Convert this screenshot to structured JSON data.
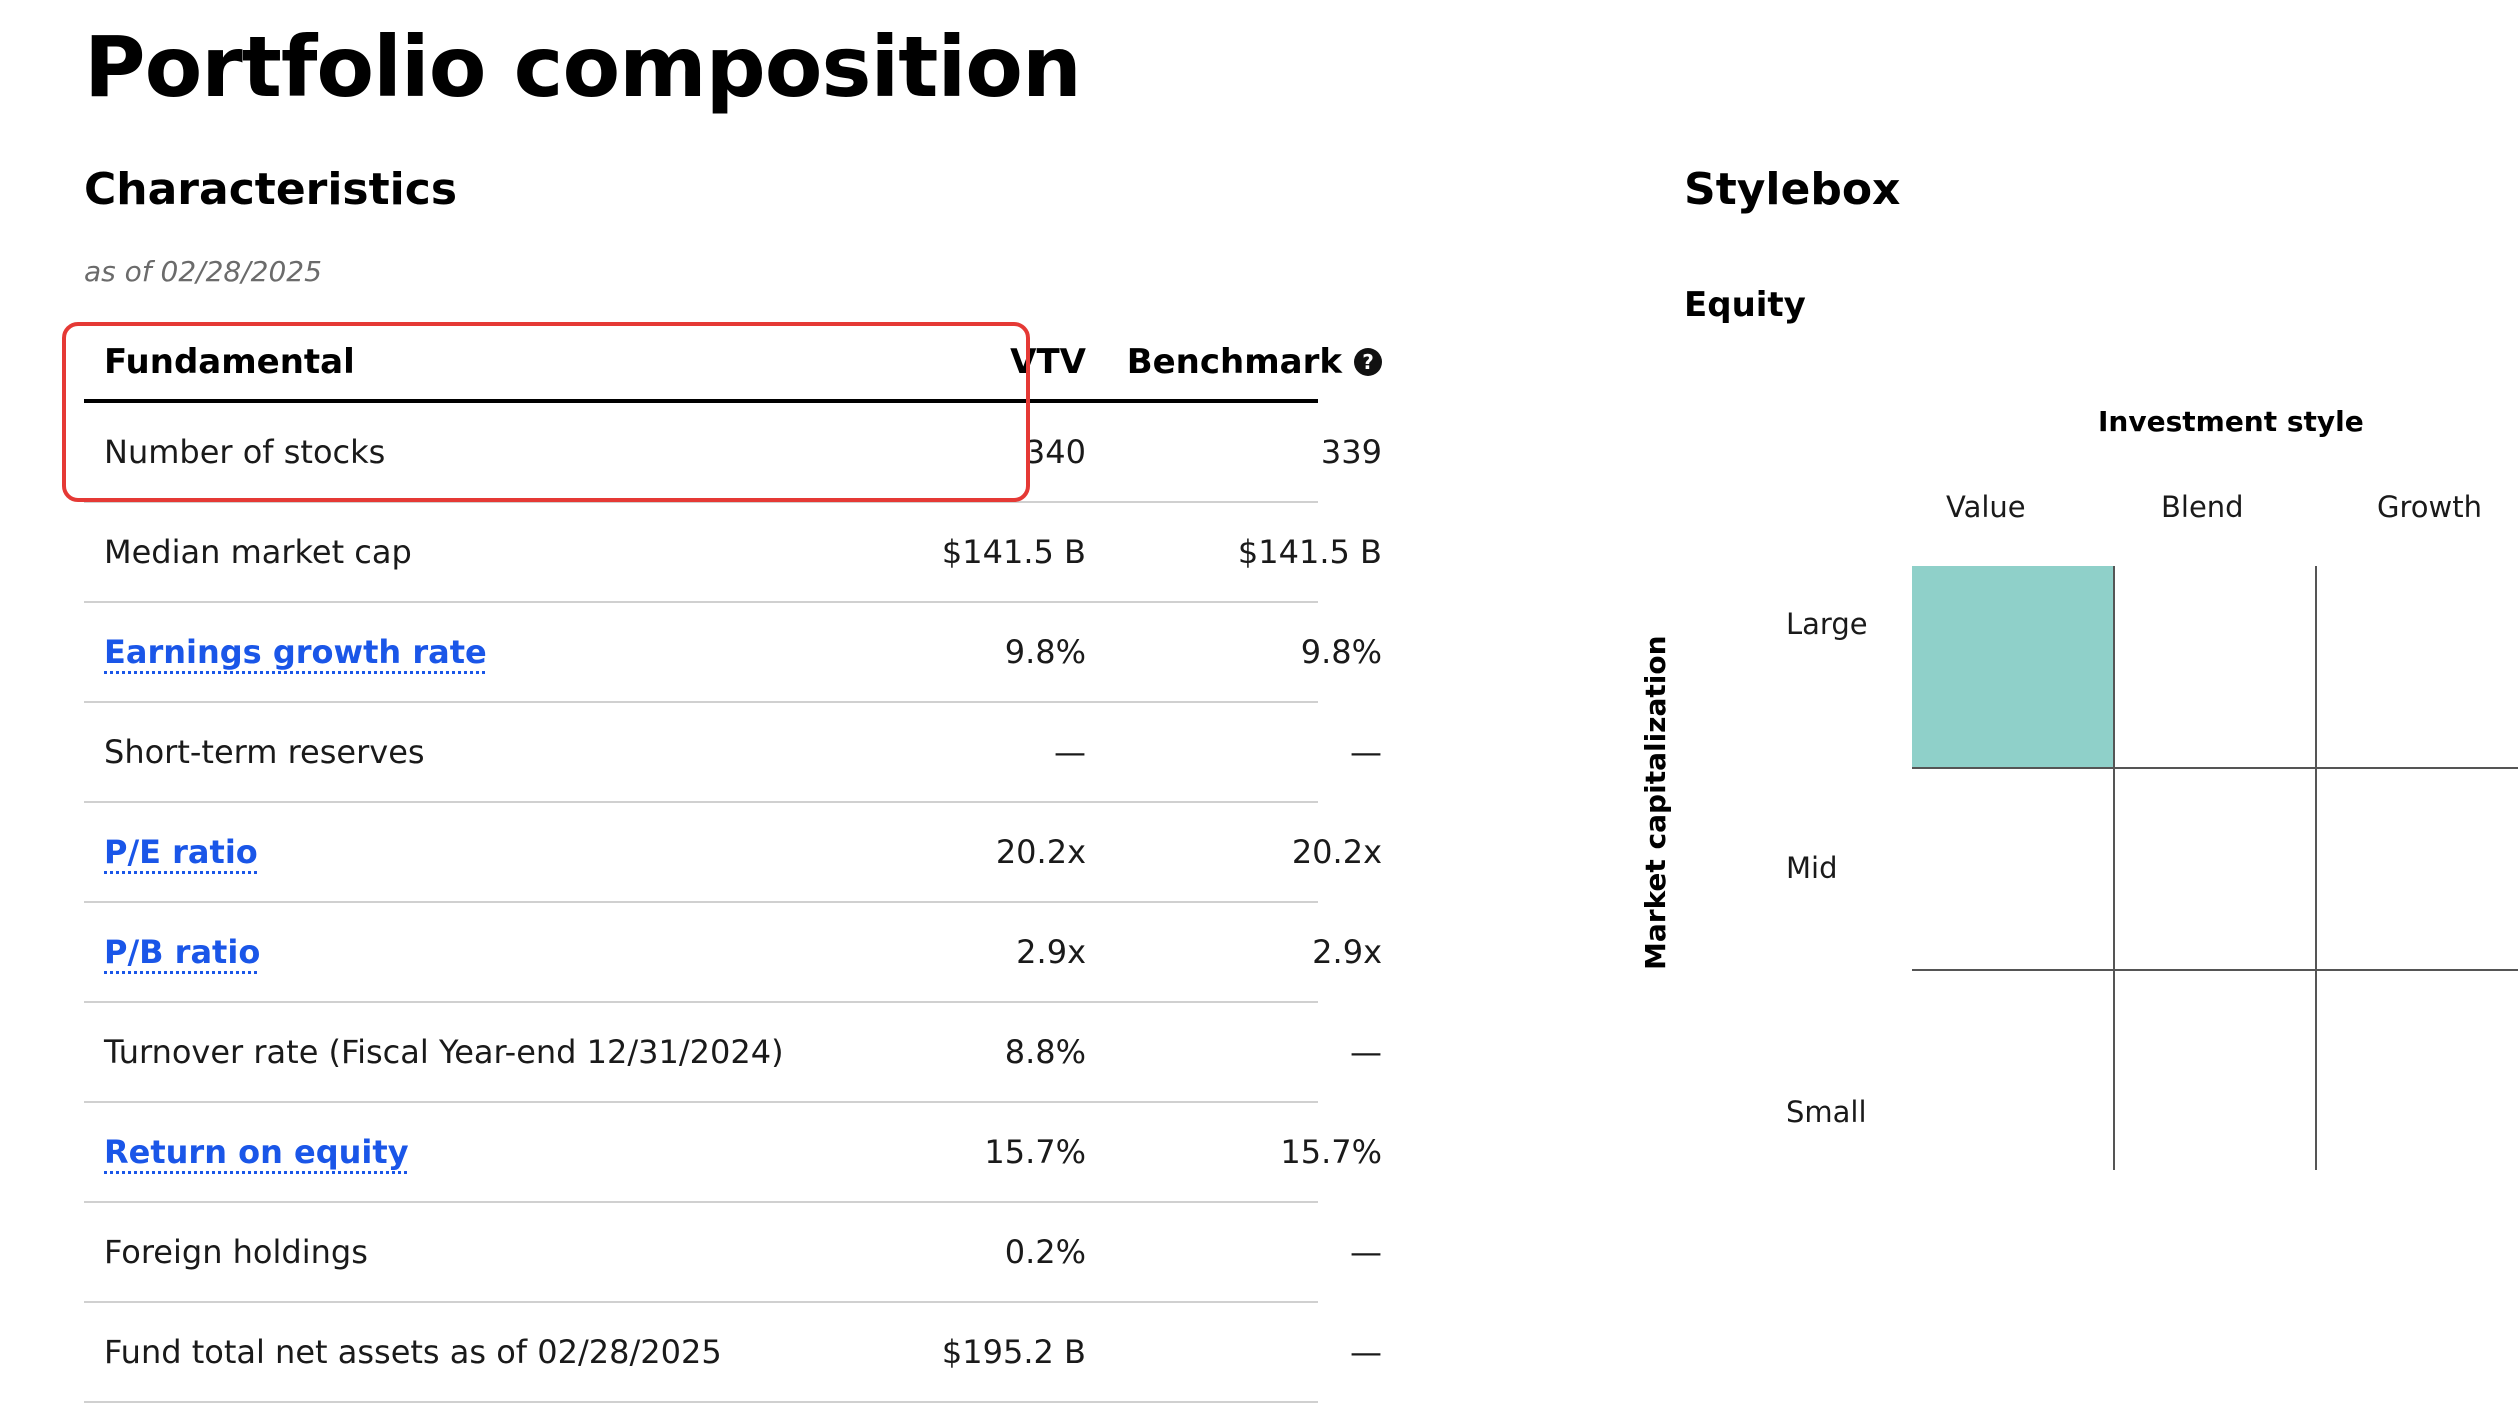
{
  "page": {
    "title": "Portfolio composition"
  },
  "characteristics": {
    "title": "Characteristics",
    "as_of": "as of 02/28/2025",
    "headers": {
      "fundamental": "Fundamental",
      "vtv": "VTV",
      "benchmark": "Benchmark",
      "help_icon": "?"
    },
    "rows": [
      {
        "label": "Number of stocks",
        "vtv": "340",
        "benchmark": "339",
        "link": false
      },
      {
        "label": "Median market cap",
        "vtv": "$141.5 B",
        "benchmark": "$141.5 B",
        "link": false
      },
      {
        "label": "Earnings growth rate",
        "vtv": "9.8%",
        "benchmark": "9.8%",
        "link": true
      },
      {
        "label": "Short-term reserves",
        "vtv": "—",
        "benchmark": "—",
        "link": false
      },
      {
        "label": "P/E ratio",
        "vtv": "20.2x",
        "benchmark": "20.2x",
        "link": true
      },
      {
        "label": "P/B ratio",
        "vtv": "2.9x",
        "benchmark": "2.9x",
        "link": true
      },
      {
        "label": "Turnover rate (Fiscal Year-end 12/31/2024)",
        "vtv": "8.8%",
        "benchmark": "—",
        "link": false
      },
      {
        "label": "Return on equity",
        "vtv": "15.7%",
        "benchmark": "15.7%",
        "link": true
      },
      {
        "label": "Foreign holdings",
        "vtv": "0.2%",
        "benchmark": "—",
        "link": false
      },
      {
        "label": "Fund total net assets as of 02/28/2025",
        "vtv": "$195.2 B",
        "benchmark": "—",
        "link": false
      }
    ],
    "highlight_color": "#e53935",
    "link_color": "#1a56e8"
  },
  "stylebox": {
    "title": "Stylebox",
    "equity_label": "Equity",
    "investment_style_label": "Investment style",
    "market_cap_label": "Market capitalization",
    "columns": [
      "Value",
      "Blend",
      "Growth"
    ],
    "rows": [
      "Large",
      "Mid",
      "Small"
    ],
    "active_cell": {
      "row": "Large",
      "column": "Value"
    },
    "active_color": "#8fd0c9"
  }
}
